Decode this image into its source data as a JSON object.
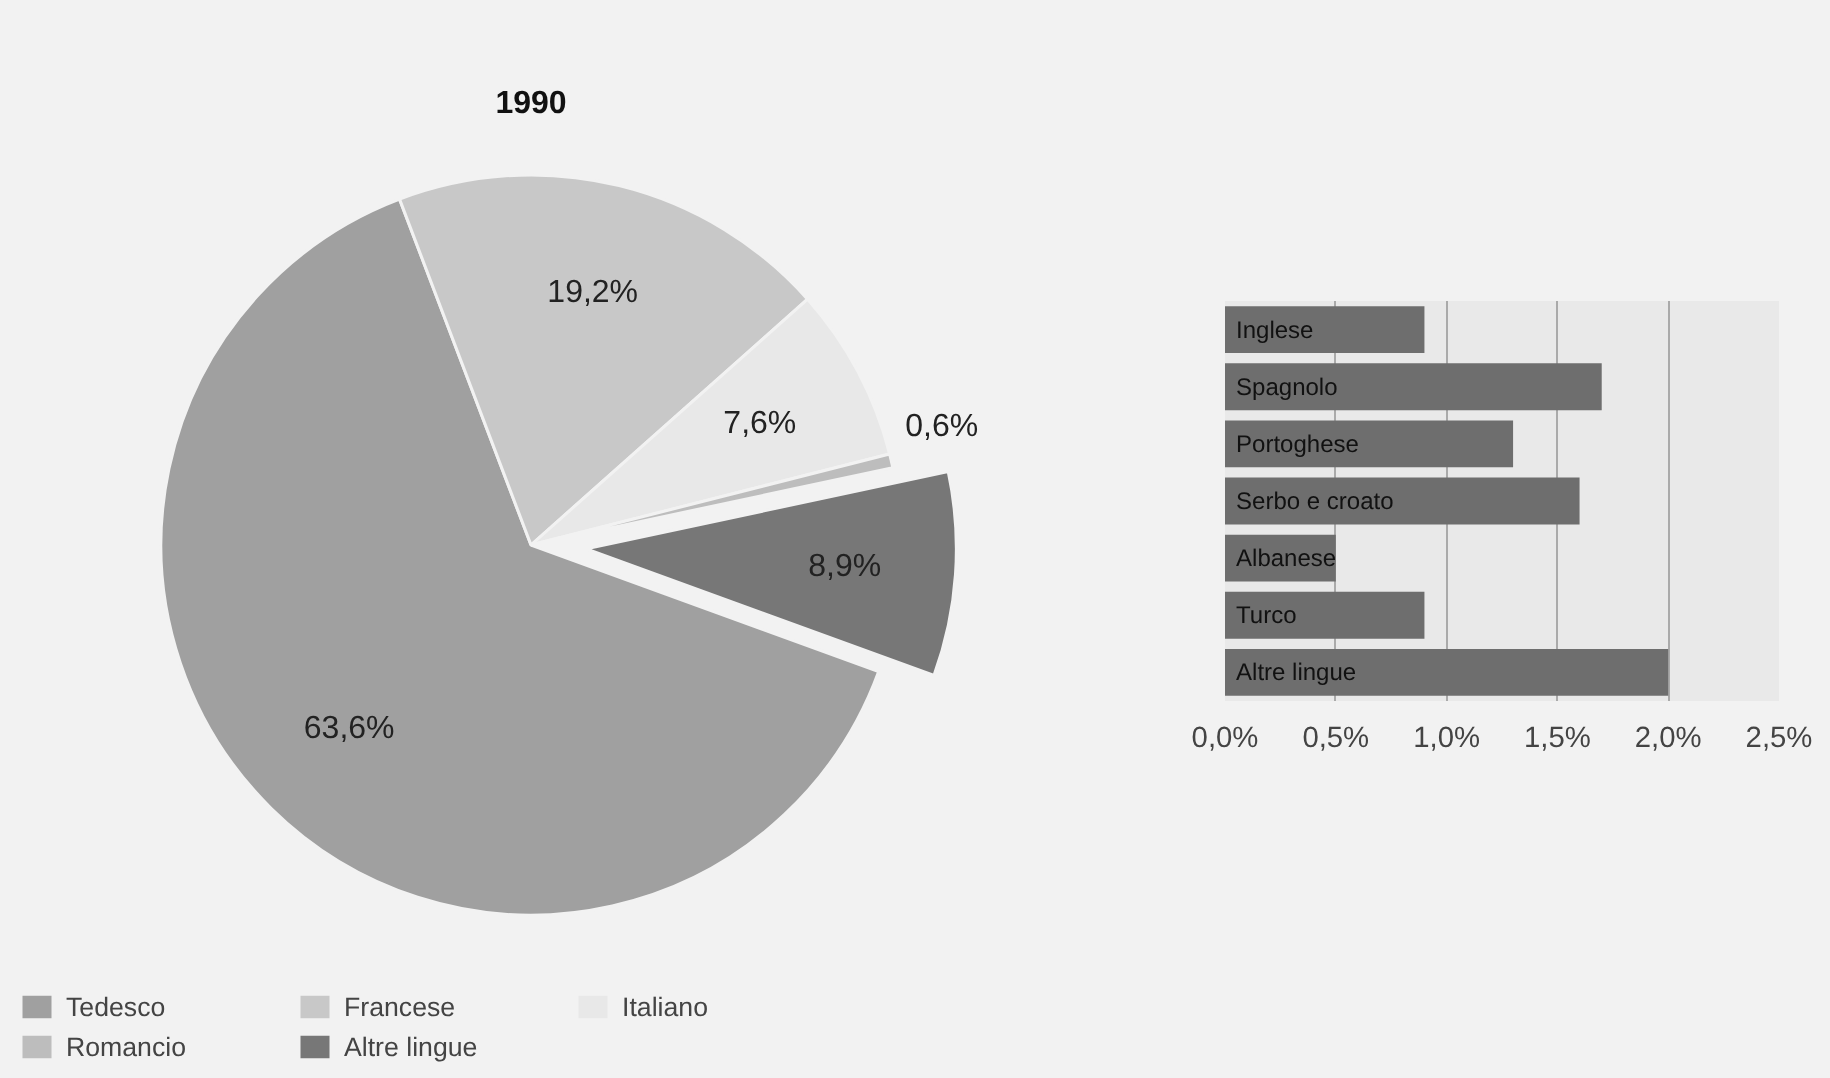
{
  "chart_data": [
    {
      "type": "pie",
      "title": "1990",
      "categories": [
        "Tedesco",
        "Francese",
        "Italiano",
        "Romancio",
        "Altre lingue"
      ],
      "values": [
        63.6,
        19.2,
        7.6,
        0.6,
        8.9
      ],
      "colors": [
        "#a0a0a0",
        "#c8c8c8",
        "#e8e8e8",
        "#bdbdbd",
        "#777777"
      ],
      "value_labels": [
        "63,6%",
        "19,2%",
        "7,6%",
        "0,6%",
        "8,9%"
      ],
      "legend": "bottom"
    },
    {
      "type": "bar",
      "orientation": "horizontal",
      "categories": [
        "Inglese",
        "Spagnolo",
        "Portoghese",
        "Serbo e croato",
        "Albanese",
        "Turco",
        "Altre lingue"
      ],
      "values": [
        0.9,
        1.7,
        1.3,
        1.6,
        0.5,
        0.9,
        2.0
      ],
      "color": "#6e6e6e",
      "xlim": [
        0,
        2.5
      ],
      "xticks": [
        {
          "value": 0,
          "label": "0,0%"
        },
        {
          "value": 0.5,
          "label": "0,5%"
        },
        {
          "value": 1.0,
          "label": "1,0%"
        },
        {
          "value": 1.5,
          "label": "1,5%"
        },
        {
          "value": 2.0,
          "label": "2,0%"
        },
        {
          "value": 2.5,
          "label": "2,5%"
        }
      ],
      "grid": "x"
    }
  ]
}
